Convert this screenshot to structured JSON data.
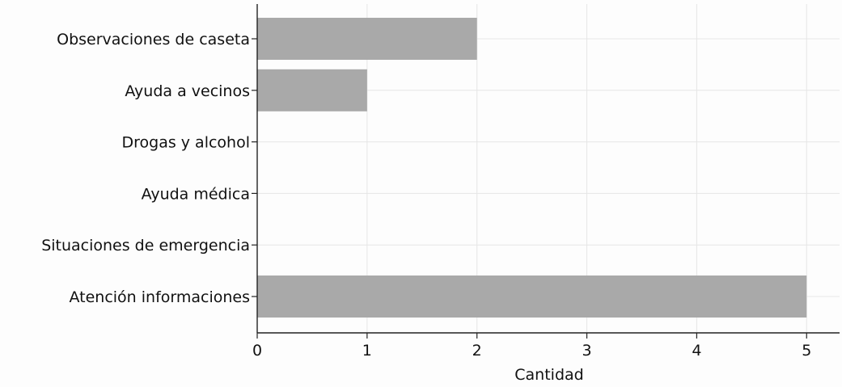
{
  "chart_data": {
    "type": "bar",
    "orientation": "horizontal",
    "categories": [
      "Observaciones de caseta",
      "Ayuda a vecinos",
      "Drogas y alcohol",
      "Ayuda médica",
      "Situaciones de emergencia",
      "Atención informaciones"
    ],
    "values": [
      2,
      1,
      0,
      0,
      0,
      5
    ],
    "xlabel": "Cantidad",
    "ylabel": "",
    "xlim": [
      0,
      5.3
    ],
    "xticks": [
      0,
      1,
      2,
      3,
      4,
      5
    ],
    "grid": true,
    "bar_color": "#a9a9a9",
    "grid_color": "#e6e6e6"
  }
}
